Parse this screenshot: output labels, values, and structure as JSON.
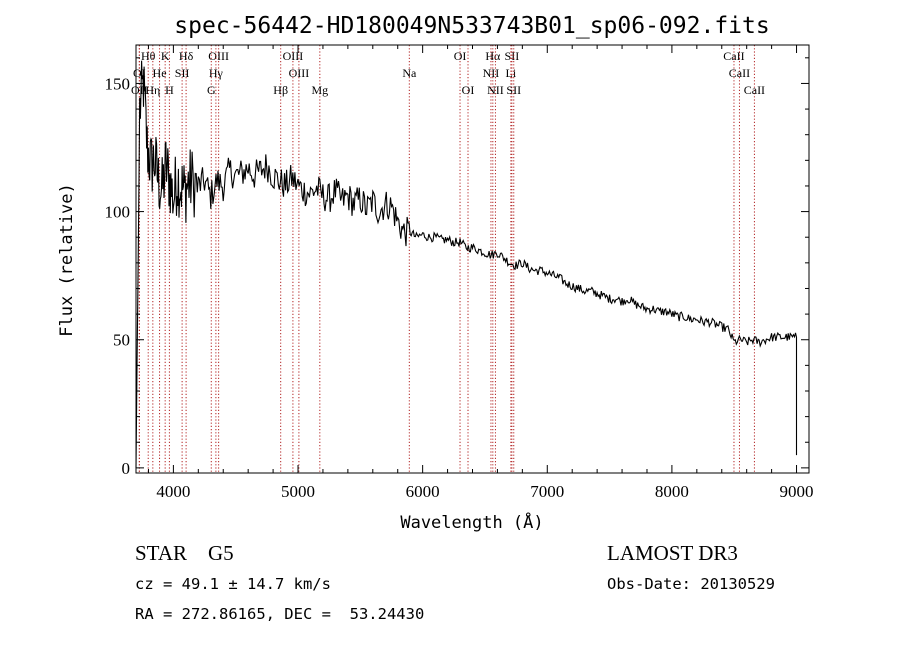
{
  "chart_data": {
    "type": "line",
    "title": "spec-56442-HD180049N533743B01_sp06-092.fits",
    "xlabel": "Wavelength (Å)",
    "ylabel": "Flux (relative)",
    "xlim": [
      3700,
      9100
    ],
    "ylim": [
      -2,
      165
    ],
    "x_ticks": [
      4000,
      5000,
      6000,
      7000,
      8000,
      9000
    ],
    "y_ticks": [
      0,
      50,
      100,
      150
    ],
    "series": [
      {
        "name": "flux",
        "x": [
          3700,
          3730,
          3760,
          3790,
          3820,
          3850,
          3880,
          3910,
          3940,
          3970,
          4000,
          4030,
          4060,
          4090,
          4120,
          4150,
          4200,
          4250,
          4300,
          4350,
          4400,
          4450,
          4500,
          4550,
          4600,
          4650,
          4700,
          4750,
          4800,
          4850,
          4900,
          4950,
          5000,
          5050,
          5100,
          5150,
          5200,
          5250,
          5300,
          5350,
          5400,
          5450,
          5500,
          5550,
          5600,
          5650,
          5700,
          5750,
          5800,
          5850,
          5900,
          5950,
          6000,
          6050,
          6100,
          6150,
          6200,
          6250,
          6300,
          6350,
          6400,
          6450,
          6500,
          6550,
          6600,
          6650,
          6700,
          6750,
          6800,
          6850,
          6900,
          6950,
          7000,
          7050,
          7100,
          7150,
          7200,
          7250,
          7300,
          7350,
          7400,
          7450,
          7500,
          7550,
          7600,
          7650,
          7700,
          7750,
          7800,
          7850,
          7900,
          7950,
          8000,
          8050,
          8100,
          8150,
          8200,
          8250,
          8300,
          8350,
          8400,
          8450,
          8500,
          8550,
          8600,
          8650,
          8700,
          8750,
          8800,
          8850,
          8900,
          8950,
          9000
        ],
        "y": [
          0,
          140,
          150,
          125,
          118,
          120,
          112,
          108,
          118,
          112,
          105,
          113,
          110,
          108,
          111,
          112,
          110,
          112,
          106,
          112,
          110,
          116,
          114,
          115,
          117,
          114,
          116,
          118,
          114,
          112,
          110,
          113,
          110,
          108,
          107,
          109,
          106,
          105,
          108,
          104,
          106,
          103,
          105,
          101,
          104,
          100,
          103,
          102,
          96,
          92,
          92,
          90,
          91,
          90,
          90,
          89,
          89,
          88,
          88,
          86,
          86,
          85,
          84,
          83,
          84,
          82,
          80,
          79,
          80,
          78,
          77,
          77,
          76,
          75,
          74,
          72,
          71,
          70,
          69,
          69,
          68,
          67,
          66,
          66,
          65,
          66,
          64,
          63,
          62,
          62,
          61,
          61,
          60,
          59,
          59,
          58,
          58,
          57,
          57,
          56,
          55,
          54,
          49,
          50,
          49,
          50,
          49,
          50,
          51,
          51,
          51,
          51,
          51
        ]
      }
    ],
    "spectral_lines": [
      {
        "label": "Hθ",
        "x": 3798,
        "row": 0
      },
      {
        "label": "K",
        "x": 3934,
        "row": 0
      },
      {
        "label": "Hδ",
        "x": 4102,
        "row": 0
      },
      {
        "label": "OIII",
        "x": 4363,
        "row": 0
      },
      {
        "label": "OIII",
        "x": 4959,
        "row": 0
      },
      {
        "label": "OI",
        "x": 6300,
        "row": 0
      },
      {
        "label": "Hα",
        "x": 6563,
        "row": 0
      },
      {
        "label": "SII",
        "x": 6716,
        "row": 0
      },
      {
        "label": "CaII",
        "x": 8498,
        "row": 0
      },
      {
        "label": "OI",
        "x": 3727,
        "row": 1
      },
      {
        "label": "He",
        "x": 3889,
        "row": 1
      },
      {
        "label": "SII",
        "x": 4070,
        "row": 1
      },
      {
        "label": "Hγ",
        "x": 4341,
        "row": 1
      },
      {
        "label": "OIII",
        "x": 5007,
        "row": 1
      },
      {
        "label": "NII",
        "x": 6548,
        "row": 1
      },
      {
        "label": "Li",
        "x": 6708,
        "row": 1
      },
      {
        "label": "CaII",
        "x": 8542,
        "row": 1
      },
      {
        "label": "OII",
        "x": 3727,
        "row": 2
      },
      {
        "label": "Hη",
        "x": 3835,
        "row": 2
      },
      {
        "label": "H",
        "x": 3968,
        "row": 2
      },
      {
        "label": "G",
        "x": 4304,
        "row": 2
      },
      {
        "label": "Hβ",
        "x": 4861,
        "row": 2
      },
      {
        "label": "Mg",
        "x": 5175,
        "row": 2
      },
      {
        "label": "OI",
        "x": 6364,
        "row": 2
      },
      {
        "label": "NII",
        "x": 6584,
        "row": 2
      },
      {
        "label": "SII",
        "x": 6731,
        "row": 2
      },
      {
        "label": "CaII",
        "x": 8662,
        "row": 2
      },
      {
        "label": "Na",
        "x": 5893,
        "row": 1
      }
    ],
    "annotations": [
      {
        "text": "STAR    G5",
        "name": "object-class"
      },
      {
        "text": "LAMOST DR3",
        "name": "survey-name"
      },
      {
        "text": "cz = 49.1 ± 14.7 km/s",
        "name": "redshift"
      },
      {
        "text": "Obs-Date: 20130529",
        "name": "obs-date"
      },
      {
        "text": "RA = 272.86165, DEC =  53.24430",
        "name": "coordinates"
      }
    ]
  }
}
